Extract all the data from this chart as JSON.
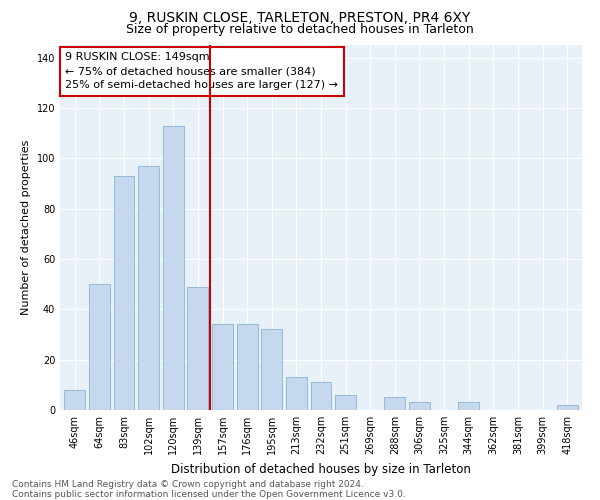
{
  "title": "9, RUSKIN CLOSE, TARLETON, PRESTON, PR4 6XY",
  "subtitle": "Size of property relative to detached houses in Tarleton",
  "xlabel": "Distribution of detached houses by size in Tarleton",
  "ylabel": "Number of detached properties",
  "categories": [
    "46sqm",
    "64sqm",
    "83sqm",
    "102sqm",
    "120sqm",
    "139sqm",
    "157sqm",
    "176sqm",
    "195sqm",
    "213sqm",
    "232sqm",
    "251sqm",
    "269sqm",
    "288sqm",
    "306sqm",
    "325sqm",
    "344sqm",
    "362sqm",
    "381sqm",
    "399sqm",
    "418sqm"
  ],
  "values": [
    8,
    50,
    93,
    97,
    113,
    49,
    34,
    34,
    32,
    13,
    11,
    6,
    0,
    5,
    3,
    0,
    3,
    0,
    0,
    0,
    2
  ],
  "bar_color": "#c5d8ed",
  "bar_edge_color": "#8ab4d4",
  "vline_x": 5.5,
  "vline_color": "#cc0000",
  "annotation_line1": "9 RUSKIN CLOSE: 149sqm",
  "annotation_line2": "← 75% of detached houses are smaller (384)",
  "annotation_line3": "25% of semi-detached houses are larger (127) →",
  "annotation_box_color": "#ffffff",
  "annotation_box_edge": "#cc0000",
  "ylim": [
    0,
    145
  ],
  "yticks": [
    0,
    20,
    40,
    60,
    80,
    100,
    120,
    140
  ],
  "bg_color": "#e8f0f8",
  "grid_color": "#ffffff",
  "footnote": "Contains HM Land Registry data © Crown copyright and database right 2024.\nContains public sector information licensed under the Open Government Licence v3.0.",
  "title_fontsize": 10,
  "subtitle_fontsize": 9,
  "xlabel_fontsize": 8.5,
  "ylabel_fontsize": 8,
  "tick_fontsize": 7,
  "annot_fontsize": 8,
  "footnote_fontsize": 6.5
}
